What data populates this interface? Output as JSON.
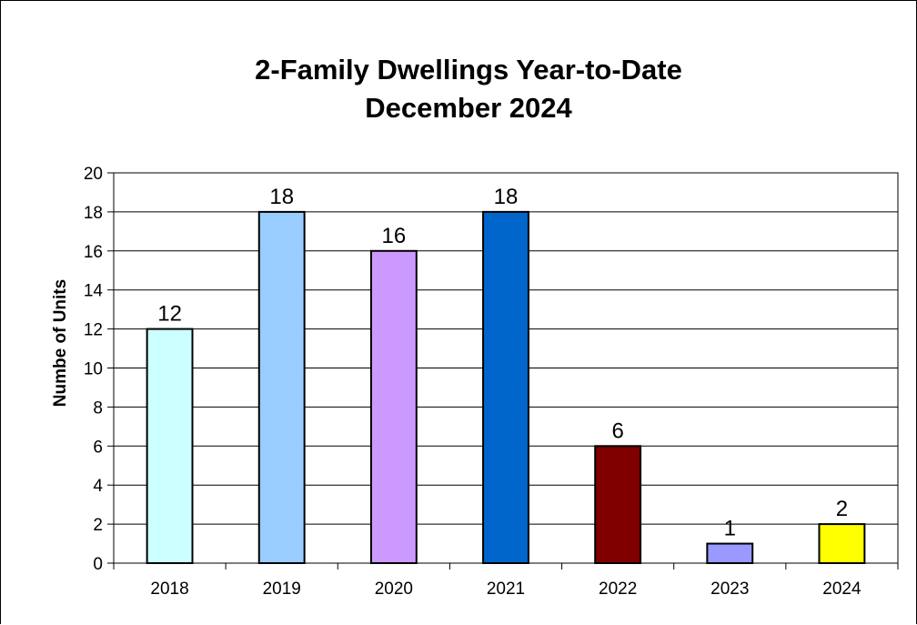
{
  "chart_data": {
    "type": "bar",
    "title_lines": [
      "2-Family Dwellings Year-to-Date",
      "December 2024"
    ],
    "xlabel": "",
    "ylabel": "Numbe of Units",
    "categories": [
      "2018",
      "2019",
      "2020",
      "2021",
      "2022",
      "2023",
      "2024"
    ],
    "values": [
      12,
      18,
      16,
      18,
      6,
      1,
      2
    ],
    "data_labels": [
      "12",
      "18",
      "16",
      "18",
      "6",
      "1",
      "2"
    ],
    "colors": [
      "#CCFFFF",
      "#99CCFF",
      "#CC99FF",
      "#0066CC",
      "#800000",
      "#9999FF",
      "#FFFF00"
    ],
    "ylim": [
      0,
      20
    ],
    "yticks": [
      0,
      2,
      4,
      6,
      8,
      10,
      12,
      14,
      16,
      18,
      20
    ],
    "ytick_labels": [
      "0",
      "2",
      "4",
      "6",
      "8",
      "10",
      "12",
      "14",
      "16",
      "18",
      "20"
    ],
    "grid": true,
    "legend": "none"
  }
}
